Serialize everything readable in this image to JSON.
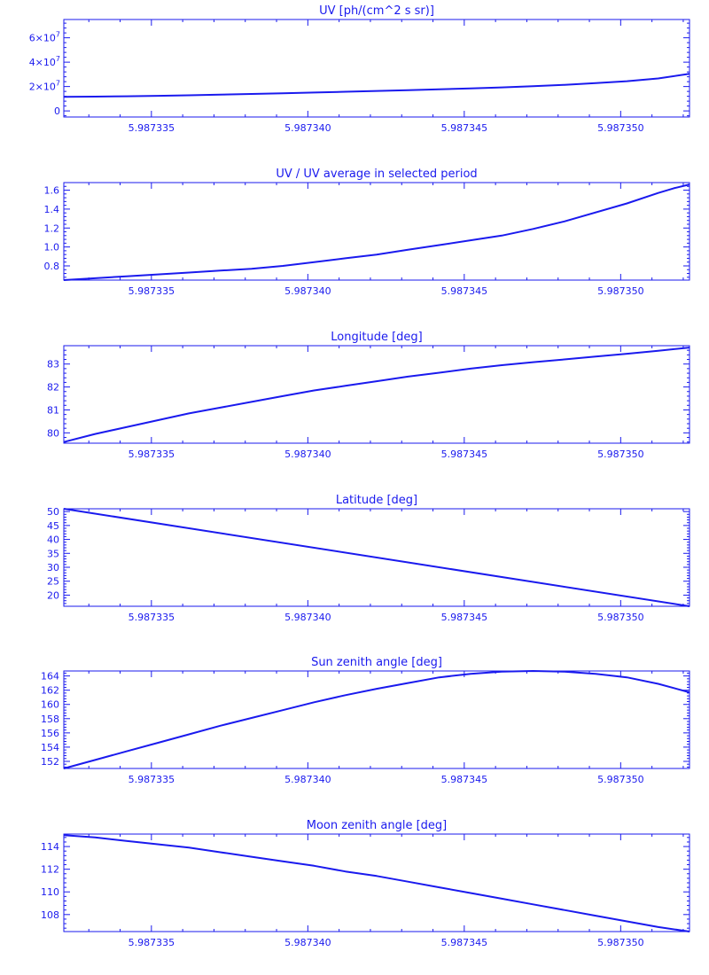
{
  "colors": {
    "line": "#1a1aee",
    "background": "#ffffff"
  },
  "chart_data": [
    {
      "type": "line",
      "title": "UV [ph/(cm^2 s sr)]",
      "xlim": [
        5.9873322,
        5.9873522
      ],
      "xticks": [
        5.987335,
        5.98734,
        5.987345,
        5.98735
      ],
      "xtick_labels": [
        "5.987335",
        "5.987340",
        "5.987345",
        "5.987350"
      ],
      "ylim": [
        -5000000,
        75000000
      ],
      "yticks": [
        0,
        20000000,
        40000000,
        60000000
      ],
      "ytick_labels": [
        "0",
        "2×10^7",
        "4×10^7",
        "6×10^7"
      ],
      "ytick_display": [
        [
          "0",
          ""
        ],
        [
          "2×10",
          "7"
        ],
        [
          "4×10",
          "7"
        ],
        [
          "6×10",
          "7"
        ]
      ],
      "x": [
        5.9873322,
        5.9873332,
        5.9873342,
        5.9873352,
        5.9873362,
        5.9873372,
        5.9873382,
        5.9873392,
        5.9873402,
        5.9873412,
        5.9873422,
        5.9873432,
        5.9873442,
        5.9873452,
        5.9873462,
        5.9873472,
        5.9873482,
        5.9873492,
        5.9873502,
        5.9873512,
        5.9873522
      ],
      "y": [
        11500000,
        11700000,
        12000000,
        12400000,
        12800000,
        13300000,
        13900000,
        14500000,
        15100000,
        15700000,
        16400000,
        17000000,
        17700000,
        18500000,
        19300000,
        20300000,
        21400000,
        22800000,
        24400000,
        26600000,
        30500000
      ]
    },
    {
      "type": "line",
      "title": "UV / UV average in selected period",
      "xlim": [
        5.9873322,
        5.9873522
      ],
      "xticks": [
        5.987335,
        5.98734,
        5.987345,
        5.98735
      ],
      "xtick_labels": [
        "5.987335",
        "5.987340",
        "5.987345",
        "5.987350"
      ],
      "ylim": [
        0.65,
        1.68
      ],
      "yticks": [
        0.8,
        1.0,
        1.2,
        1.4,
        1.6
      ],
      "ytick_labels": [
        "0.8",
        "1.0",
        "1.2",
        "1.4",
        "1.6"
      ],
      "x": [
        5.9873322,
        5.9873332,
        5.9873342,
        5.9873352,
        5.9873362,
        5.9873372,
        5.9873382,
        5.9873392,
        5.9873402,
        5.9873412,
        5.9873422,
        5.9873432,
        5.9873442,
        5.9873452,
        5.9873462,
        5.9873472,
        5.9873482,
        5.9873502,
        5.9873512,
        5.9873517,
        5.9873522
      ],
      "y": [
        0.65,
        0.67,
        0.69,
        0.71,
        0.73,
        0.75,
        0.77,
        0.8,
        0.84,
        0.88,
        0.92,
        0.97,
        1.02,
        1.07,
        1.12,
        1.19,
        1.27,
        1.46,
        1.57,
        1.62,
        1.66
      ]
    },
    {
      "type": "line",
      "title": "Longitude [deg]",
      "xlim": [
        5.9873322,
        5.9873522
      ],
      "xticks": [
        5.987335,
        5.98734,
        5.987345,
        5.98735
      ],
      "xtick_labels": [
        "5.987335",
        "5.987340",
        "5.987345",
        "5.987350"
      ],
      "ylim": [
        79.55,
        83.8
      ],
      "yticks": [
        80,
        81,
        82,
        83
      ],
      "ytick_labels": [
        "80",
        "81",
        "82",
        "83"
      ],
      "x": [
        5.9873322,
        5.9873332,
        5.9873342,
        5.9873352,
        5.9873362,
        5.9873372,
        5.9873382,
        5.9873392,
        5.9873402,
        5.9873412,
        5.9873422,
        5.9873432,
        5.9873442,
        5.9873452,
        5.9873462,
        5.9873472,
        5.9873482,
        5.9873492,
        5.9873502,
        5.9873512,
        5.9873522
      ],
      "y": [
        79.6,
        79.95,
        80.25,
        80.55,
        80.85,
        81.1,
        81.35,
        81.6,
        81.85,
        82.05,
        82.25,
        82.45,
        82.62,
        82.8,
        82.95,
        83.08,
        83.2,
        83.33,
        83.45,
        83.58,
        83.72
      ]
    },
    {
      "type": "line",
      "title": "Latitude [deg]",
      "xlim": [
        5.9873322,
        5.9873522
      ],
      "xticks": [
        5.987335,
        5.98734,
        5.987345,
        5.98735
      ],
      "xtick_labels": [
        "5.987335",
        "5.987340",
        "5.987345",
        "5.987350"
      ],
      "ylim": [
        16,
        51
      ],
      "yticks": [
        20,
        25,
        30,
        35,
        40,
        45,
        50
      ],
      "ytick_labels": [
        "20",
        "25",
        "30",
        "35",
        "40",
        "45",
        "50"
      ],
      "x": [
        5.9873322,
        5.9873522
      ],
      "y": [
        51,
        16
      ]
    },
    {
      "type": "line",
      "title": "Sun zenith angle [deg]",
      "xlim": [
        5.9873322,
        5.9873522
      ],
      "xticks": [
        5.987335,
        5.98734,
        5.987345,
        5.98735
      ],
      "xtick_labels": [
        "5.987335",
        "5.987340",
        "5.987345",
        "5.987350"
      ],
      "ylim": [
        151,
        164.7
      ],
      "yticks": [
        152,
        154,
        156,
        158,
        160,
        162,
        164
      ],
      "ytick_labels": [
        "152",
        "154",
        "156",
        "158",
        "160",
        "162",
        "164"
      ],
      "x": [
        5.9873322,
        5.9873332,
        5.9873342,
        5.9873352,
        5.9873362,
        5.9873372,
        5.9873382,
        5.9873392,
        5.9873402,
        5.9873412,
        5.9873422,
        5.9873432,
        5.9873442,
        5.9873452,
        5.9873462,
        5.9873472,
        5.9873482,
        5.9873492,
        5.9873502,
        5.9873512,
        5.9873522
      ],
      "y": [
        151.0,
        152.2,
        153.4,
        154.6,
        155.8,
        157.0,
        158.1,
        159.2,
        160.3,
        161.3,
        162.2,
        163.0,
        163.8,
        164.3,
        164.6,
        164.7,
        164.6,
        164.3,
        163.8,
        162.9,
        161.7
      ]
    },
    {
      "type": "line",
      "title": "Moon zenith angle [deg]",
      "xlim": [
        5.9873322,
        5.9873522
      ],
      "xticks": [
        5.987335,
        5.98734,
        5.987345,
        5.98735
      ],
      "xtick_labels": [
        "5.987335",
        "5.987340",
        "5.987345",
        "5.987350"
      ],
      "ylim": [
        106.5,
        115.1
      ],
      "yticks": [
        108,
        110,
        112,
        114
      ],
      "ytick_labels": [
        "108",
        "110",
        "112",
        "114"
      ],
      "x": [
        5.9873322,
        5.9873332,
        5.9873342,
        5.9873352,
        5.9873362,
        5.9873372,
        5.9873382,
        5.9873392,
        5.9873402,
        5.9873412,
        5.9873422,
        5.9873432,
        5.9873442,
        5.9873452,
        5.9873462,
        5.9873472,
        5.9873482,
        5.9873492,
        5.9873502,
        5.9873512,
        5.9873522
      ],
      "y": [
        115.0,
        114.8,
        114.5,
        114.2,
        113.9,
        113.5,
        113.1,
        112.7,
        112.3,
        111.8,
        111.4,
        110.9,
        110.4,
        109.9,
        109.4,
        108.9,
        108.4,
        107.9,
        107.4,
        106.9,
        106.5
      ]
    }
  ]
}
